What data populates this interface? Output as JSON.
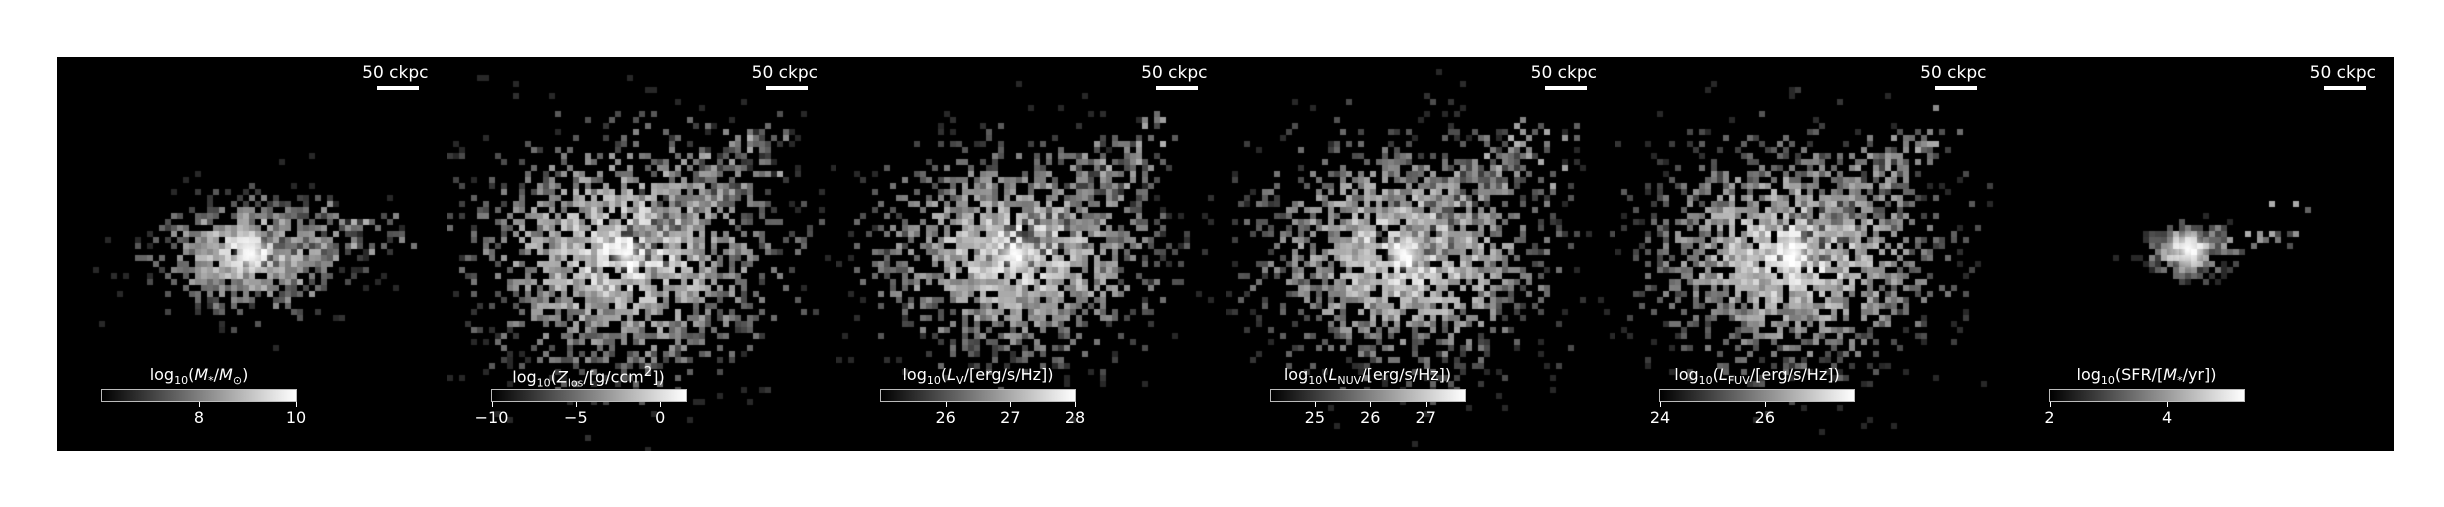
{
  "colors": {
    "background": "#000000",
    "text": "#ffffff",
    "frame": "#ffffff"
  },
  "panels": [
    {
      "scalebar": "50 ckpc",
      "cb_label_html": "log<sub>10</sub>(<i>M</i><sub>*</sub>/<i>M</i><sub>⊙</sub>)",
      "cb_range": [
        6.0,
        10.0
      ],
      "ticks": [
        {
          "v": 8,
          "t": "8"
        },
        {
          "v": 10,
          "t": "10"
        }
      ],
      "center": [
        0.5,
        0.5
      ],
      "spread": [
        0.12,
        0.07
      ],
      "density": 0.45,
      "tail": [
        0.85,
        0.44
      ]
    },
    {
      "scalebar": "50 ckpc",
      "cb_label_html": "log<sub>10</sub>(<i>Z</i><sub>los</sub>/[g/ccm<sup>2</sup>])",
      "cb_range": [
        -10.0,
        1.5
      ],
      "ticks": [
        {
          "v": -10,
          "t": "−10"
        },
        {
          "v": -5,
          "t": "−5"
        },
        {
          "v": 0,
          "t": "0"
        }
      ],
      "center": [
        0.46,
        0.5
      ],
      "spread": [
        0.2,
        0.15
      ],
      "density": 0.95,
      "tail": [
        0.8,
        0.2
      ]
    },
    {
      "scalebar": "50 ckpc",
      "cb_label_html": "log<sub>10</sub>(<i>L</i><sub>V</sub>/[erg/s/Hz])",
      "cb_range": [
        25.0,
        28.0
      ],
      "ticks": [
        {
          "v": 26,
          "t": "26"
        },
        {
          "v": 27,
          "t": "27"
        },
        {
          "v": 28,
          "t": "28"
        }
      ],
      "center": [
        0.46,
        0.5
      ],
      "spread": [
        0.18,
        0.13
      ],
      "density": 0.85,
      "tail": [
        0.8,
        0.2
      ]
    },
    {
      "scalebar": "50 ckpc",
      "cb_label_html": "log<sub>10</sub>(<i>L</i><sub>NUV</sub>/[erg/s/Hz])",
      "cb_range": [
        24.2,
        27.7
      ],
      "ticks": [
        {
          "v": 25,
          "t": "25"
        },
        {
          "v": 26,
          "t": "26"
        },
        {
          "v": 27,
          "t": "27"
        }
      ],
      "center": [
        0.46,
        0.5
      ],
      "spread": [
        0.19,
        0.14
      ],
      "density": 0.9,
      "tail": [
        0.8,
        0.2
      ]
    },
    {
      "scalebar": "50 ckpc",
      "cb_label_html": "log<sub>10</sub>(<i>L</i><sub>FUV</sub>/[erg/s/Hz])",
      "cb_range": [
        24.0,
        27.7
      ],
      "ticks": [
        {
          "v": 24,
          "t": "24"
        },
        {
          "v": 26,
          "t": "26"
        }
      ],
      "center": [
        0.46,
        0.5
      ],
      "spread": [
        0.19,
        0.14
      ],
      "density": 0.9,
      "tail": [
        0.8,
        0.2
      ]
    },
    {
      "scalebar": "50 ckpc",
      "cb_label_html": "log<sub>10</sub>(SFR/[<i>M</i><sub>*</sub>/yr])",
      "cb_range": [
        2.0,
        5.3
      ],
      "ticks": [
        {
          "v": 2,
          "t": "2"
        },
        {
          "v": 4,
          "t": "4"
        }
      ],
      "center": [
        0.47,
        0.49
      ],
      "spread": [
        0.05,
        0.03
      ],
      "density": 0.2,
      "tail": [
        0.78,
        0.43
      ]
    }
  ]
}
